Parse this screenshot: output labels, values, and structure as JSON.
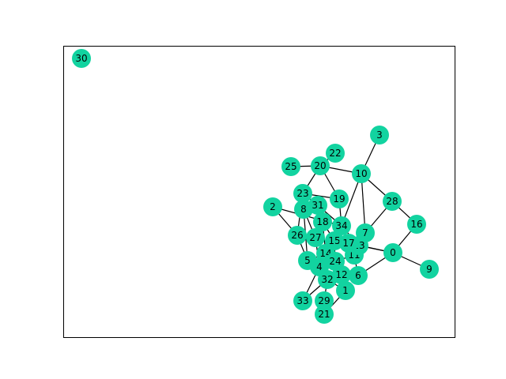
{
  "graph": {
    "node_color": "#12d3a0",
    "edge_color": "#000000",
    "nodes": [
      "0",
      "1",
      "2",
      "3",
      "4",
      "5",
      "6",
      "7",
      "8",
      "9",
      "10",
      "11",
      "12",
      "13",
      "14",
      "15",
      "16",
      "17",
      "18",
      "19",
      "20",
      "21",
      "22",
      "23",
      "24",
      "25",
      "26",
      "27",
      "28",
      "29",
      "30",
      "31",
      "32",
      "33",
      "34"
    ],
    "edges": [
      [
        "0",
        "9"
      ],
      [
        "0",
        "16"
      ],
      [
        "0",
        "6"
      ],
      [
        "0",
        "13"
      ],
      [
        "0",
        "17"
      ],
      [
        "3",
        "10"
      ],
      [
        "10",
        "28"
      ],
      [
        "10",
        "20"
      ],
      [
        "10",
        "34"
      ],
      [
        "10",
        "7"
      ],
      [
        "28",
        "16"
      ],
      [
        "28",
        "7"
      ],
      [
        "25",
        "20"
      ],
      [
        "20",
        "22"
      ],
      [
        "20",
        "23"
      ],
      [
        "20",
        "19"
      ],
      [
        "23",
        "19"
      ],
      [
        "23",
        "8"
      ],
      [
        "23",
        "26"
      ],
      [
        "23",
        "31"
      ],
      [
        "2",
        "26"
      ],
      [
        "2",
        "34"
      ],
      [
        "8",
        "27"
      ],
      [
        "8",
        "5"
      ],
      [
        "31",
        "18"
      ],
      [
        "31",
        "34"
      ],
      [
        "19",
        "34"
      ],
      [
        "18",
        "14"
      ],
      [
        "18",
        "15"
      ],
      [
        "34",
        "17"
      ],
      [
        "34",
        "13"
      ],
      [
        "34",
        "11"
      ],
      [
        "26",
        "27"
      ],
      [
        "26",
        "5"
      ],
      [
        "27",
        "4"
      ],
      [
        "27",
        "14"
      ],
      [
        "5",
        "14"
      ],
      [
        "5",
        "4"
      ],
      [
        "4",
        "32"
      ],
      [
        "4",
        "24"
      ],
      [
        "15",
        "24"
      ],
      [
        "15",
        "17"
      ],
      [
        "17",
        "11"
      ],
      [
        "7",
        "13"
      ],
      [
        "7",
        "11"
      ],
      [
        "13",
        "11"
      ],
      [
        "14",
        "24"
      ],
      [
        "24",
        "12"
      ],
      [
        "24",
        "11"
      ],
      [
        "12",
        "6"
      ],
      [
        "12",
        "1"
      ],
      [
        "6",
        "11"
      ],
      [
        "32",
        "29"
      ],
      [
        "32",
        "33"
      ],
      [
        "32",
        "1"
      ],
      [
        "29",
        "21"
      ],
      [
        "1",
        "21"
      ],
      [
        "33",
        "4"
      ]
    ]
  }
}
